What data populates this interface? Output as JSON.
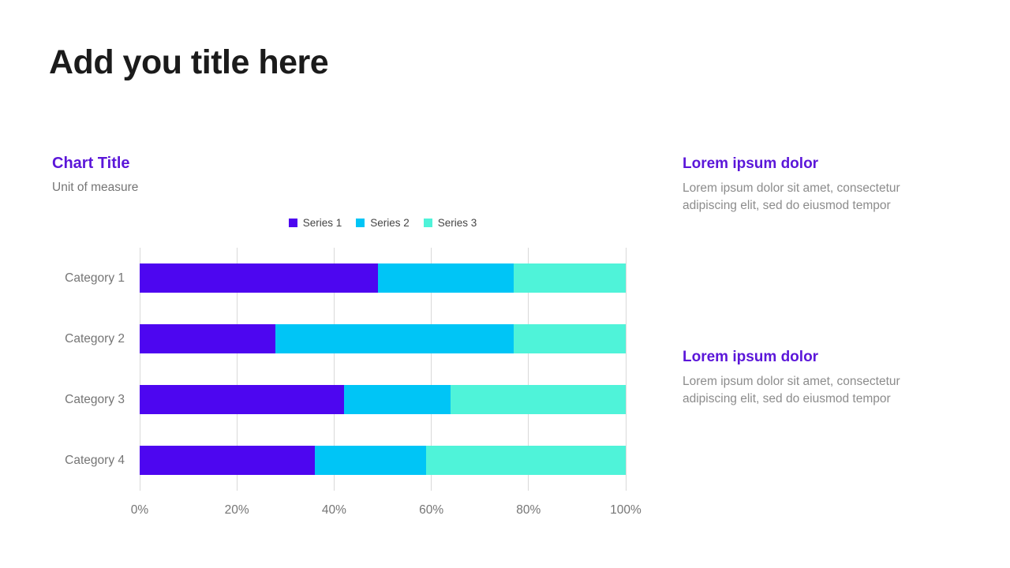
{
  "slide": {
    "title": "Add you title here"
  },
  "chart": {
    "title": "Chart Title",
    "unit": "Unit of measure"
  },
  "chart_data": {
    "type": "bar",
    "orientation": "horizontal",
    "stacked": true,
    "title": "Chart Title",
    "xlabel": "",
    "ylabel": "Unit of measure",
    "xlim": [
      0,
      100
    ],
    "x_ticks": [
      "0%",
      "20%",
      "40%",
      "60%",
      "80%",
      "100%"
    ],
    "grid": "vertical",
    "legend_position": "top-center",
    "categories": [
      "Category 1",
      "Category 2",
      "Category 3",
      "Category 4"
    ],
    "series": [
      {
        "name": "Series 1",
        "color": "#4D06F0",
        "values": [
          49,
          28,
          42,
          36
        ]
      },
      {
        "name": "Series 2",
        "color": "#00C5F6",
        "values": [
          28,
          49,
          22,
          23
        ]
      },
      {
        "name": "Series 3",
        "color": "#4FF3D9",
        "values": [
          23,
          23,
          36,
          41
        ]
      }
    ]
  },
  "text_blocks": [
    {
      "heading": "Lorem ipsum dolor",
      "body": "Lorem ipsum dolor sit amet, consectetur adipiscing elit, sed do eiusmod tempor"
    },
    {
      "heading": "Lorem ipsum dolor",
      "body": "Lorem ipsum dolor sit amet, consectetur adipiscing elit, sed do eiusmod tempor"
    }
  ],
  "colors": {
    "accent_purple": "#5B16D9",
    "title_text": "#1B1B1B",
    "muted_text": "#757575",
    "body_text": "#8C8C8C",
    "gridline": "#D9D9D9"
  }
}
